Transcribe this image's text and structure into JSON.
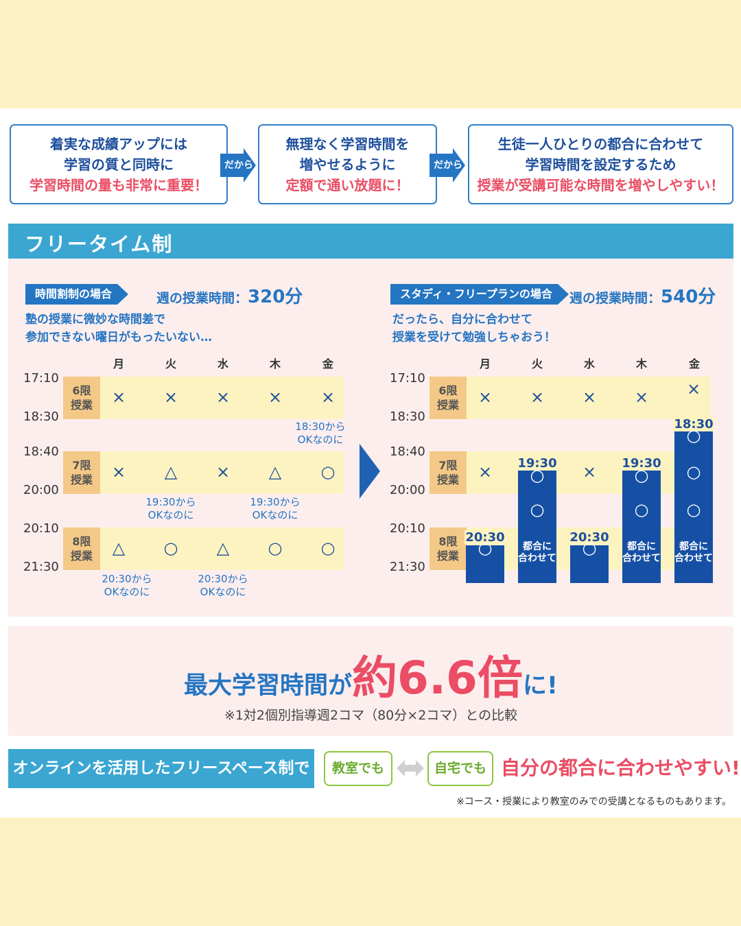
{
  "flow": {
    "box1": {
      "line1": "着実な成績アップには",
      "line2": "学習の質と同時に",
      "line3": "学習時間の量も非常に重要！"
    },
    "arrow1": "だから",
    "box2": {
      "line1": "無理なく学習時間を",
      "line2": "増やせるように",
      "line3": "定額で通い放題に！"
    },
    "arrow2": "だから",
    "box3": {
      "line1": "生徒一人ひとりの都合に合わせて",
      "line2": "学習時間を設定するため",
      "line3": "授業が受講可能な時間を増やしやすい！"
    }
  },
  "section_title": "フリータイム制",
  "left": {
    "tag": "時間割制の場合",
    "weekly_label": "週の授業時間：",
    "weekly_value": "320分",
    "desc1": "塾の授業に微妙な時間差で",
    "desc2": "参加できない曜日がもったいない…"
  },
  "right": {
    "tag": "スタディ・フリープランの場合",
    "weekly_label": "週の授業時間：",
    "weekly_value": "540分",
    "desc1": "だったら、自分に合わせて",
    "desc2": "授業を受けて勉強しちゃおう！"
  },
  "days": [
    "月",
    "火",
    "水",
    "木",
    "金"
  ],
  "times": [
    "17:10",
    "18:30",
    "18:40",
    "20:00",
    "20:10",
    "21:30"
  ],
  "periods": [
    {
      "num": "6限",
      "label": "授業"
    },
    {
      "num": "7限",
      "label": "授業"
    },
    {
      "num": "8限",
      "label": "授業"
    }
  ],
  "left_marks": {
    "p6": [
      "×",
      "×",
      "×",
      "×",
      "×"
    ],
    "p7": [
      "×",
      "△",
      "×",
      "△",
      "○"
    ],
    "p8": [
      "△",
      "○",
      "△",
      "○",
      "○"
    ]
  },
  "left_notes": {
    "fri_1830": [
      "18:30から",
      "OKなのに"
    ],
    "tue_1930": [
      "19:30から",
      "OKなのに"
    ],
    "thu_1930": [
      "19:30から",
      "OKなのに"
    ],
    "mon_2030": [
      "20:30から",
      "OKなのに"
    ],
    "wed_2030": [
      "20:30から",
      "OKなのに"
    ]
  },
  "right_marks": {
    "p6": [
      "×",
      "×",
      "×",
      "×",
      "×"
    ],
    "p7_mon": "×",
    "p7_wed": "×",
    "circle": "○"
  },
  "right_bars": {
    "mon_start": "20:30",
    "tue_start": "19:30",
    "wed_start": "20:30",
    "thu_start": "19:30",
    "fri_start": "18:30",
    "adjust1": "都合に",
    "adjust2": "合わせて"
  },
  "result": {
    "pre": "最大学習時間が",
    "big": "約6.6倍",
    "post": "に!",
    "note": "※1対2個別指導週2コマ（80分×2コマ）との比較"
  },
  "bottom": {
    "online": "オンラインを活用したフリースペース制で",
    "classroom": "教室でも",
    "home": "自宅でも",
    "slogan": "自分の都合に合わせやすい!",
    "footnote": "※コース・授業により教室のみでの受講となるものもあります。"
  },
  "colors": {
    "background": "#fdf1c4",
    "blue": "#2475c2",
    "red": "#ea4d64",
    "navy_bar": "#1550a4",
    "green": "#8cc63f"
  }
}
